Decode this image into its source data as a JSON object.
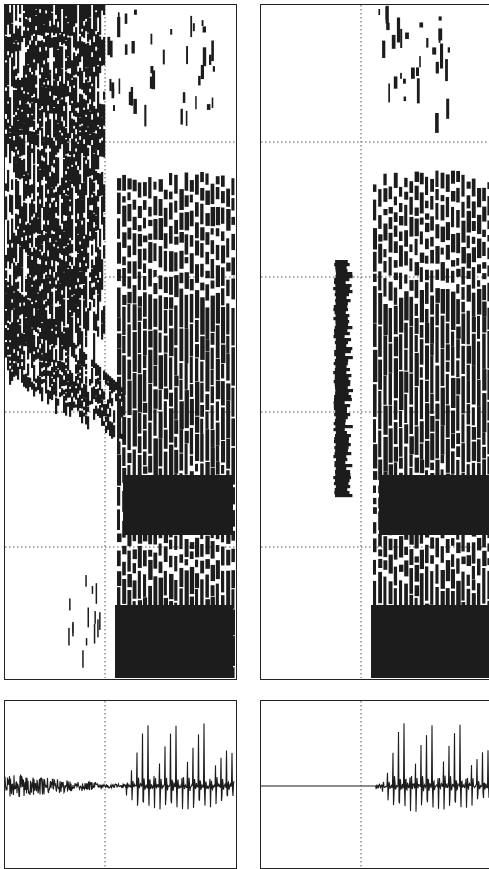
{
  "figure": {
    "panels": [
      {
        "id": "left",
        "spectrogram": {
          "onset": "gradual"
        },
        "waveform": {
          "onset": "noisy"
        }
      },
      {
        "id": "right",
        "spectrogram": {
          "onset": "burst"
        },
        "waveform": {
          "onset": "abrupt"
        }
      }
    ]
  }
}
